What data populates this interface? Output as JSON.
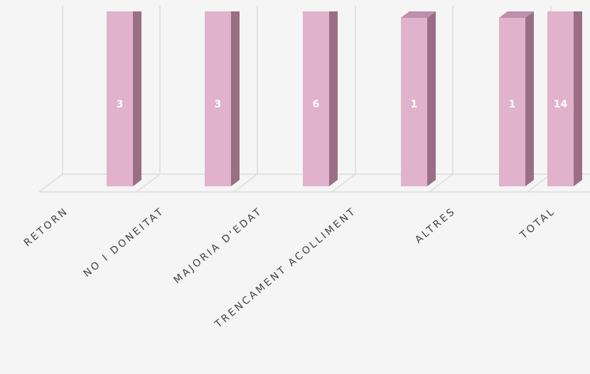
{
  "chart_data": {
    "type": "bar3d",
    "categories": [
      "RETORN",
      "NO I DONEITAT",
      "MAJORIA D'EDAT",
      "TRENCAMENT ACOLLIMENT",
      "ALTRES",
      "TOTAL"
    ],
    "values": [
      3,
      3,
      6,
      1,
      1,
      14
    ],
    "color": "#e0b2cc",
    "ylim": [
      0,
      1
    ]
  }
}
